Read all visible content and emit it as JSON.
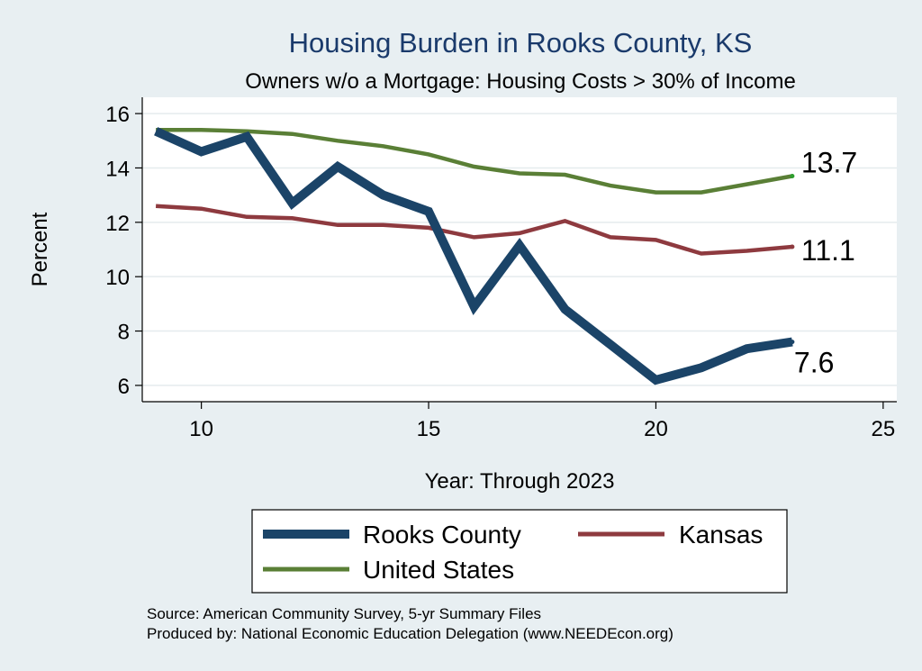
{
  "chart_data": {
    "type": "line",
    "title": "Housing Burden in Rooks County, KS",
    "subtitle": "Owners w/o a Mortgage: Housing Costs > 30% of Income",
    "xlabel": "Year: Through 2023",
    "ylabel": "Percent",
    "xlim": [
      8.7,
      25.3
    ],
    "ylim": [
      5.4,
      16.6
    ],
    "xticks": [
      10,
      15,
      20,
      25
    ],
    "yticks": [
      6,
      8,
      10,
      12,
      14,
      16
    ],
    "grid": true,
    "x": [
      9,
      10,
      11,
      12,
      13,
      14,
      15,
      16,
      17,
      18,
      19,
      20,
      21,
      22,
      23
    ],
    "series": [
      {
        "name": "Rooks County",
        "color": "#1b4468",
        "values": [
          15.35,
          14.6,
          15.15,
          12.7,
          14.05,
          13.0,
          12.4,
          8.9,
          11.15,
          8.8,
          7.5,
          6.2,
          6.65,
          7.35,
          7.6
        ],
        "end_label": "7.6"
      },
      {
        "name": "Kansas",
        "color": "#8e3a3f",
        "values": [
          12.6,
          12.5,
          12.2,
          12.15,
          11.9,
          11.9,
          11.8,
          11.45,
          11.6,
          12.05,
          11.45,
          11.35,
          10.85,
          10.95,
          11.1
        ],
        "end_label": "11.1"
      },
      {
        "name": "United States",
        "color": "#5a7f36",
        "values": [
          15.4,
          15.4,
          15.35,
          15.25,
          15.0,
          14.8,
          14.5,
          14.05,
          13.8,
          13.75,
          13.35,
          13.1,
          13.1,
          13.4,
          13.7
        ],
        "end_label": "13.7"
      }
    ],
    "legend_position": "bottom"
  },
  "source": {
    "line1": "Source: American Community Survey, 5-yr Summary Files",
    "line2": "Produced by: National Economic Education Delegation (www.NEEDEcon.org)"
  }
}
